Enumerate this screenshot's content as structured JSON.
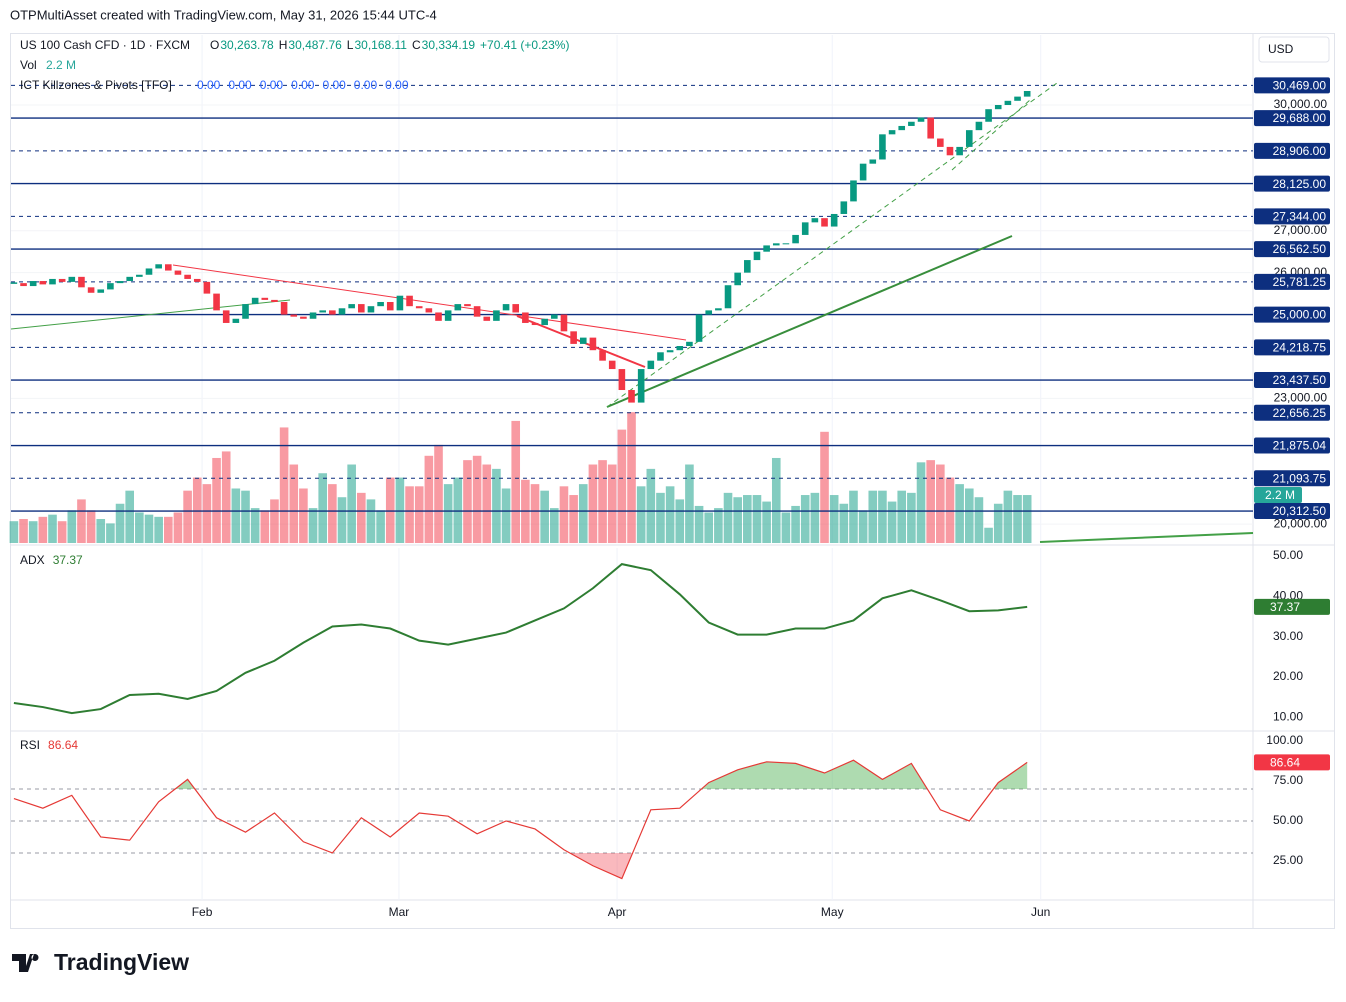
{
  "header": {
    "attribution": "OTPMultiAsset created with TradingView.com, May 31, 2026 15:44 UTC-4",
    "symbol": "US 100 Cash CFD · 1D · FXCM",
    "ohlc": [
      {
        "key": "O",
        "value": "30,263.78"
      },
      {
        "key": "H",
        "value": "30,487.76"
      },
      {
        "key": "L",
        "value": "30,168.11"
      },
      {
        "key": "C",
        "value": "30,334.19"
      }
    ],
    "change": "+70.41 (+0.23%)",
    "currency": "USD",
    "indicator": {
      "name": "ICT Killzones & Pivots [TFO]",
      "values": [
        "0.00",
        "0.00",
        "0.00",
        "0.00",
        "0.00",
        "0.00",
        "0.00"
      ]
    }
  },
  "chart_data": [
    {
      "type": "candlestick",
      "up_color": "#089981",
      "down_color": "#f23645",
      "xlim": [
        -0.3,
        128.4
      ],
      "ylim": [
        19550,
        31670
      ],
      "values": [
        25750,
        25680,
        25800,
        25720,
        25850,
        25780,
        25900,
        25650,
        25520,
        25600,
        25750,
        25800,
        25900,
        25950,
        26100,
        26200,
        26050,
        25950,
        25850,
        25780,
        25500,
        25100,
        24800,
        24900,
        25250,
        25400,
        25350,
        25300,
        25000,
        24950,
        24900,
        25050,
        25100,
        25000,
        25150,
        25250,
        25050,
        25200,
        25300,
        25100,
        25450,
        25200,
        25150,
        25050,
        24850,
        25100,
        25250,
        25200,
        24950,
        24850,
        25100,
        25250,
        25050,
        24800,
        24750,
        24900,
        25000,
        24600,
        24300,
        24450,
        24150,
        23900,
        23700,
        23200,
        22900,
        23700,
        23900,
        24100,
        24150,
        24250,
        24350,
        25000,
        25100,
        25150,
        25700,
        26000,
        26300,
        26500,
        26650,
        26700,
        26700,
        26900,
        27200,
        27300,
        27100,
        27400,
        27700,
        28200,
        28600,
        28700,
        29300,
        29400,
        29500,
        29600,
        29700,
        29200,
        29000,
        28800,
        29000,
        29400,
        29600,
        29900,
        30000,
        30100,
        30200,
        30334
      ],
      "yticks": [
        {
          "value": 30000,
          "label": "30,000.00"
        },
        {
          "value": 27000,
          "label": "27,000.00"
        },
        {
          "value": 26000,
          "label": "26,000.00"
        },
        {
          "value": 23000,
          "label": "23,000.00"
        },
        {
          "value": 20000,
          "label": "20,000.00"
        }
      ],
      "levels": [
        {
          "value": 30469,
          "label": "30,469.00",
          "style": "dashed"
        },
        {
          "value": 29688,
          "label": "29,688.00",
          "style": "solid"
        },
        {
          "value": 28906,
          "label": "28,906.00",
          "style": "dashed"
        },
        {
          "value": 28125,
          "label": "28,125.00",
          "style": "solid"
        },
        {
          "value": 27344,
          "label": "27,344.00",
          "style": "dashed"
        },
        {
          "value": 26562.5,
          "label": "26,562.50",
          "style": "solid"
        },
        {
          "value": 25781.25,
          "label": "25,781.25",
          "style": "dashed"
        },
        {
          "value": 25000,
          "label": "25,000.00",
          "style": "solid"
        },
        {
          "value": 24218.75,
          "label": "24,218.75",
          "style": "dashed"
        },
        {
          "value": 23437.5,
          "label": "23,437.50",
          "style": "solid"
        },
        {
          "value": 22656.25,
          "label": "22,656.25",
          "style": "dashed"
        },
        {
          "value": 21875.04,
          "label": "21,875.04",
          "style": "solid"
        },
        {
          "value": 21093.75,
          "label": "21,093.75",
          "style": "dashed"
        },
        {
          "value": 20312.5,
          "label": "20,312.50",
          "style": "solid"
        }
      ]
    },
    {
      "type": "bar",
      "name": "Vol",
      "value_label": "2.2 M",
      "ylim": [
        0,
        23.3
      ],
      "values": [
        1.0,
        1.1,
        1.0,
        1.2,
        1.3,
        1.0,
        1.5,
        2.0,
        1.5,
        1.1,
        0.9,
        1.8,
        2.4,
        1.4,
        1.3,
        1.2,
        1.2,
        1.4,
        2.4,
        3.0,
        2.7,
        3.9,
        4.2,
        2.5,
        2.4,
        1.6,
        1.5,
        2.0,
        5.3,
        3.6,
        2.5,
        1.6,
        3.2,
        2.7,
        2.1,
        3.6,
        2.3,
        2.0,
        1.5,
        3.0,
        3.0,
        2.6,
        2.6,
        4.0,
        4.5,
        2.7,
        3.0,
        3.8,
        4.0,
        3.6,
        3.4,
        2.5,
        5.6,
        2.9,
        2.7,
        2.4,
        1.6,
        2.6,
        2.2,
        2.7,
        3.6,
        3.8,
        3.6,
        5.2,
        6.0,
        2.6,
        3.4,
        2.3,
        2.6,
        2.0,
        3.6,
        1.7,
        1.4,
        1.6,
        2.3,
        2.1,
        2.2,
        2.2,
        1.9,
        3.9,
        1.4,
        1.7,
        2.2,
        2.3,
        5.1,
        2.2,
        1.8,
        2.4,
        1.5,
        2.4,
        2.4,
        1.9,
        2.4,
        2.3,
        3.7,
        3.8,
        3.6,
        3.0,
        2.7,
        2.5,
        2.1,
        0.7,
        1.8,
        2.4,
        2.2,
        2.2
      ]
    },
    {
      "type": "line",
      "name": "ADX",
      "color": "#2e7d32",
      "ylim": [
        6.8,
        52
      ],
      "x": [
        0,
        3,
        6,
        9,
        12,
        15,
        18,
        21,
        24,
        27,
        30,
        33,
        36,
        39,
        42,
        45,
        48,
        51,
        54,
        57,
        60,
        63,
        66,
        69,
        72,
        75,
        78,
        81,
        84,
        87,
        90,
        93,
        96,
        99,
        102,
        105
      ],
      "values": [
        13.5,
        12.5,
        11,
        12,
        15.5,
        15.8,
        14.5,
        16.5,
        21,
        24,
        28.5,
        32.5,
        33,
        32,
        29,
        28,
        29.5,
        31,
        34,
        37,
        42,
        48,
        46.5,
        40.5,
        33.5,
        30.5,
        30.5,
        32,
        32,
        34,
        39.5,
        41.5,
        39,
        36.3,
        36.5,
        37.37
      ],
      "yticks": [
        {
          "value": 10,
          "label": "10.00"
        },
        {
          "value": 20,
          "label": "20.00"
        },
        {
          "value": 30,
          "label": "30.00"
        },
        {
          "value": 40,
          "label": "40.00"
        },
        {
          "value": 50,
          "label": "50.00"
        }
      ]
    },
    {
      "type": "line",
      "name": "RSI",
      "color": "#e53935",
      "ylim": [
        0.6,
        105
      ],
      "levels": [
        70,
        50,
        30
      ],
      "x": [
        0,
        3,
        6,
        9,
        12,
        15,
        18,
        21,
        24,
        27,
        30,
        33,
        36,
        39,
        42,
        45,
        48,
        51,
        54,
        57,
        60,
        63,
        66,
        69,
        72,
        75,
        78,
        81,
        84,
        87,
        90,
        93,
        96,
        99,
        102,
        105
      ],
      "values": [
        64,
        58,
        66,
        40,
        38,
        62,
        76,
        52,
        43,
        55,
        37,
        30,
        52,
        40,
        55,
        53,
        42,
        50,
        45,
        32,
        22,
        14,
        57,
        58,
        74,
        82,
        87,
        86,
        80,
        88,
        76,
        86,
        57,
        50,
        74,
        86.64
      ],
      "yticks": [
        {
          "value": 25,
          "label": "25.00"
        },
        {
          "value": 50,
          "label": "50.00"
        },
        {
          "value": 75,
          "label": "75.00"
        },
        {
          "value": 100,
          "label": "100.00"
        }
      ],
      "xticks": [
        {
          "value": 19.5,
          "label": "Feb"
        },
        {
          "value": 39.9,
          "label": "Mar"
        },
        {
          "value": 62.5,
          "label": "Apr"
        },
        {
          "value": 84.8,
          "label": "May"
        },
        {
          "value": 106.4,
          "label": "Jun"
        }
      ]
    }
  ],
  "footer": {
    "brand": "TradingView"
  }
}
